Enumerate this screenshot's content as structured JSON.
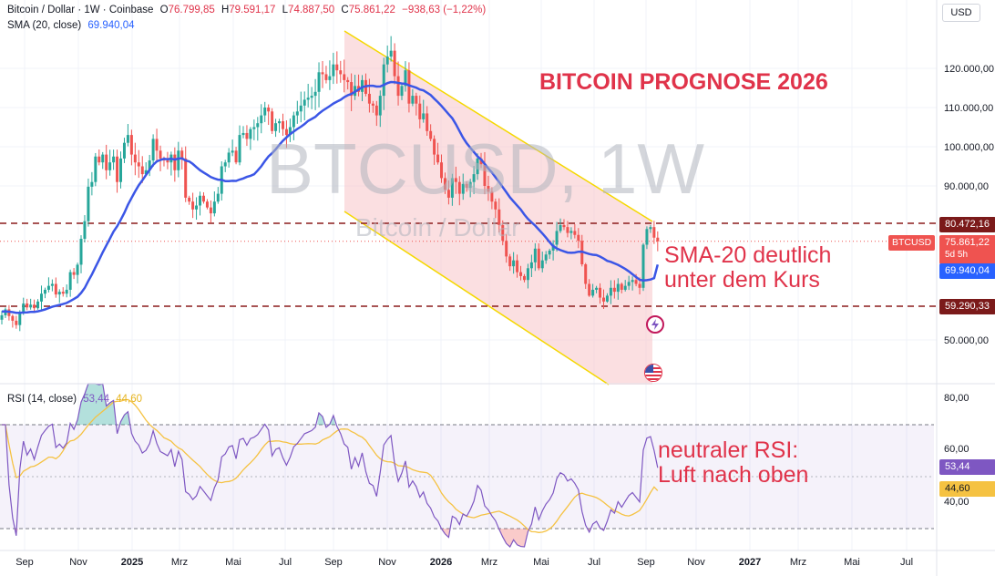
{
  "header": {
    "symbol_line": "Bitcoin / Dollar · 1W · Coinbase",
    "o_label": "O",
    "o_value": "76.799,85",
    "h_label": "H",
    "h_value": "79.591,17",
    "l_label": "L",
    "l_value": "74.887,50",
    "c_label": "C",
    "c_value": "75.861,22",
    "change": "−938,63 (−1,22%)",
    "sma_label": "SMA (20, close)",
    "sma_value": "69.940,04"
  },
  "currency_button": "USD",
  "watermark": {
    "main": "BTCUSD, 1W",
    "sub": "Bitcoin / Dollar"
  },
  "price_axis": {
    "ticks": [
      "120.000,00",
      "110.000,00",
      "100.000,00",
      "90.000,00",
      "50.000,00"
    ],
    "labels": {
      "resistance": "80.472,16",
      "symbol": "BTCUSD",
      "last_price": "75.861,22",
      "countdown": "5d 5h",
      "sma": "69.940,04",
      "support": "59.290,33"
    }
  },
  "rsi": {
    "label": "RSI (14, close)",
    "value": "53,44",
    "ma_value": "44,60",
    "ticks": [
      "80,00",
      "60,00",
      "40,00"
    ],
    "axis_value": "53,44",
    "axis_ma_value": "44,60"
  },
  "annotations": {
    "title": "BITCOIN PROGNOSE 2026",
    "sma_note_1": "SMA-20 deutlich",
    "sma_note_2": "unter dem Kurs",
    "rsi_note_1": "neutraler RSI:",
    "rsi_note_2": "Luft nach oben"
  },
  "time_axis": [
    "Sep",
    "Nov",
    "2025",
    "Mrz",
    "Mai",
    "Jul",
    "Sep",
    "Nov",
    "2026",
    "Mrz",
    "Mai",
    "Jul",
    "Sep",
    "Nov",
    "2027",
    "Mrz",
    "Mai",
    "Jul"
  ],
  "colors": {
    "up": "#26a69a",
    "down": "#ef5350",
    "sma": "#2962ff",
    "rsi": "#7e57c2",
    "rsi_ma": "#f5c242",
    "channel_fill": "#f8c5c9",
    "channel_edge": "#f5d800",
    "level_line": "#8b1c1c",
    "annotation": "#e0334a"
  },
  "icons": [
    "lightning-icon",
    "us-flag-icon"
  ],
  "chart_data": {
    "type": "candlestick",
    "close_prices": [
      57000,
      58500,
      56800,
      55600,
      54500,
      57500,
      60000,
      59000,
      59700,
      58800,
      60500,
      62500,
      63500,
      64500,
      65000,
      62300,
      63000,
      62500,
      63500,
      68000,
      67300,
      69900,
      76500,
      81000,
      89800,
      91000,
      97500,
      96000,
      98000,
      94000,
      96000,
      97500,
      91000,
      97000,
      101000,
      103000,
      98000,
      96000,
      95000,
      93000,
      94000,
      96500,
      102000,
      99000,
      97000,
      96500,
      96000,
      98000,
      94000,
      99000,
      97000,
      87000,
      86000,
      84000,
      85000,
      87500,
      86000,
      84500,
      83000,
      86000,
      88000,
      95000,
      96000,
      98500,
      99000,
      96000,
      103000,
      103500,
      102000,
      104500,
      105000,
      106000,
      108000,
      110000,
      109000,
      104000,
      106000,
      106500,
      104500,
      103000,
      105000,
      108000,
      109000,
      110500,
      112000,
      112500,
      113000,
      114000,
      119000,
      118500,
      117000,
      118000,
      121000,
      119500,
      118500,
      117000,
      116500,
      113000,
      115500,
      114000,
      117000,
      113500,
      111000,
      110500,
      108000,
      113000,
      121000,
      123000,
      124500,
      118000,
      113000,
      115500,
      119500,
      111000,
      113000,
      111000,
      107000,
      108500,
      104000,
      102000,
      98000,
      96000,
      92000,
      89000,
      87000,
      92000,
      91000,
      88000,
      90500,
      89500,
      91000,
      93000,
      97000,
      95500,
      90000,
      88500,
      86000,
      84000,
      80000,
      76000,
      72000,
      69500,
      71000,
      68000,
      67000,
      66000,
      69000,
      70500,
      74000,
      69000,
      71000,
      72500,
      73500,
      75000,
      78500,
      80000,
      79500,
      78000,
      78500,
      77500,
      76000,
      70000,
      65000,
      62000,
      63500,
      64000,
      61500,
      60500,
      62000,
      64000,
      63000,
      65000,
      63500,
      64500,
      65500,
      66000,
      65000,
      64000,
      75000,
      79000,
      79500,
      76800,
      75861
    ],
    "sma20_start": 58000,
    "rsi_ylim": [
      20,
      80
    ],
    "rsi_bands": [
      70,
      30
    ],
    "resistance_level": 80472.16,
    "support_level": 59290.33,
    "last_price": 75861.22,
    "sma_last": 69940.04,
    "rsi_last": 53.44,
    "rsi_ma_last": 44.6
  }
}
